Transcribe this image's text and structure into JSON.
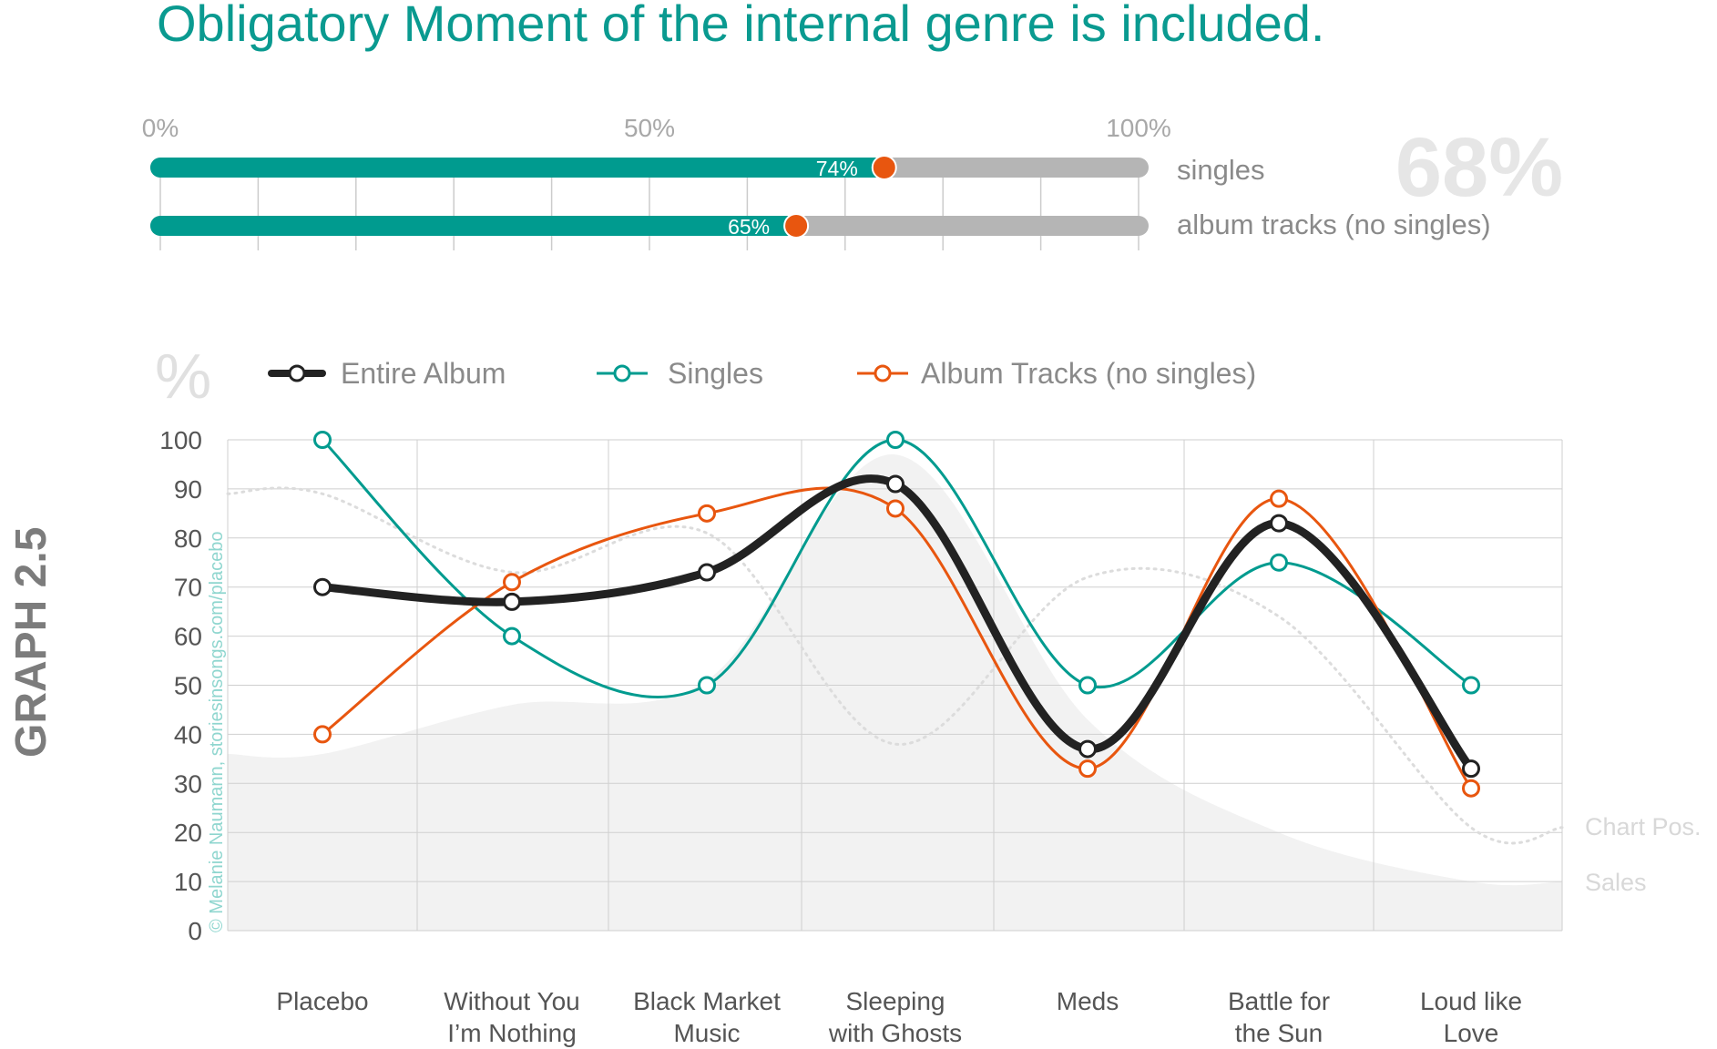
{
  "title": "Obligatory Moment of the internal genre is included.",
  "side_label": "GRAPH 2.5",
  "credit": "© Melanie Naumann, storiesinsongs.com/placebo",
  "colors": {
    "teal": "#009b8f",
    "orange": "#e8560f",
    "black": "#222222",
    "gray_bar": "#b5b5b5",
    "area": "#f2f2f2",
    "title": "#0a9a90"
  },
  "progress": {
    "scale_labels": [
      "0%",
      "50%",
      "100%"
    ],
    "big_value": "68%",
    "bars": [
      {
        "name": "singles",
        "label": "singles",
        "value": 74,
        "value_label": "74%"
      },
      {
        "name": "album-tracks",
        "label": "album tracks (no singles)",
        "value": 65,
        "value_label": "65%"
      }
    ]
  },
  "chart_data": {
    "type": "line",
    "y_unit_label": "%",
    "ylim": [
      0,
      100
    ],
    "yticks": [
      0,
      10,
      20,
      30,
      40,
      50,
      60,
      70,
      80,
      90,
      100
    ],
    "categories": [
      "Placebo",
      "Without You I’m Nothing",
      "Black Market Music",
      "Sleeping with Ghosts",
      "Meds",
      "Battle for the Sun",
      "Loud like Love"
    ],
    "category_lines": [
      [
        "Placebo"
      ],
      [
        "Without You",
        "I’m Nothing"
      ],
      [
        "Black Market",
        "Music"
      ],
      [
        "Sleeping",
        "with Ghosts"
      ],
      [
        "Meds"
      ],
      [
        "Battle for",
        "the Sun"
      ],
      [
        "Loud like",
        "Love"
      ]
    ],
    "series": [
      {
        "name": "Entire Album",
        "key": "entire-album",
        "values": [
          70,
          67,
          73,
          91,
          37,
          83,
          33
        ]
      },
      {
        "name": "Singles",
        "key": "singles",
        "values": [
          100,
          60,
          50,
          100,
          50,
          75,
          50
        ]
      },
      {
        "name": "Album Tracks (no singles)",
        "key": "album-tracks",
        "values": [
          40,
          71,
          85,
          86,
          33,
          88,
          29
        ]
      }
    ],
    "background_series": [
      {
        "name": "Chart Pos.",
        "key": "chart-pos",
        "style": "dotted",
        "values": [
          89,
          73,
          81,
          38,
          72,
          64,
          21
        ]
      },
      {
        "name": "Sales",
        "key": "sales",
        "style": "area",
        "values": [
          36,
          46,
          51,
          97,
          43,
          20,
          10
        ]
      }
    ]
  }
}
